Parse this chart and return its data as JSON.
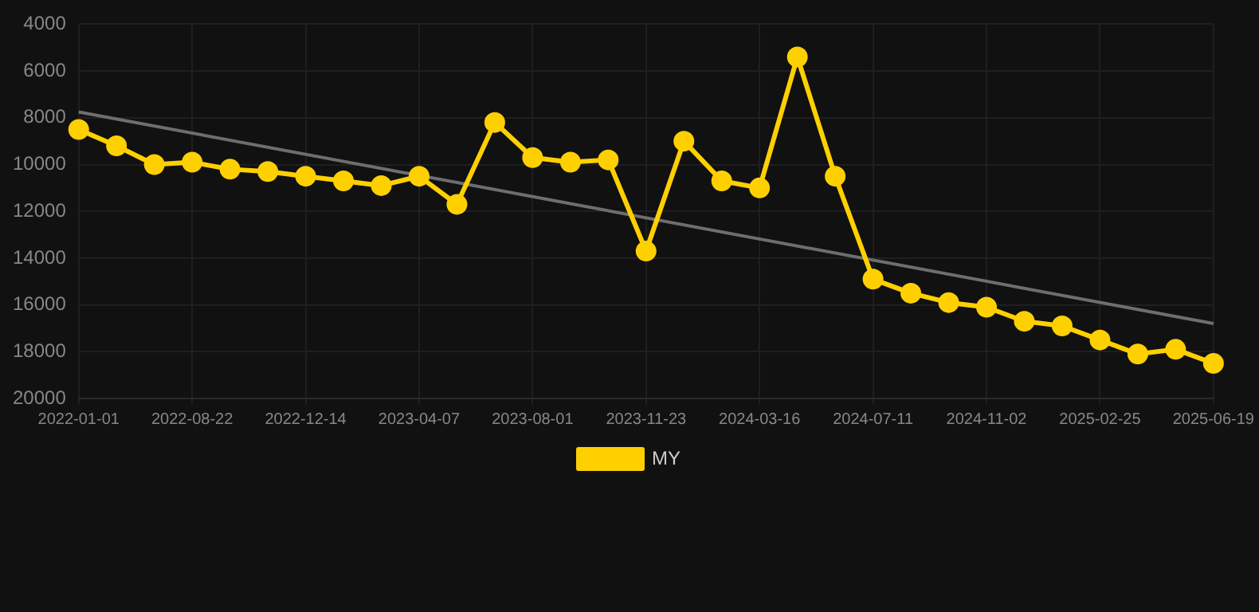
{
  "chart_data": {
    "type": "line",
    "categories": [
      "2022-01-01",
      null,
      null,
      "2022-08-22",
      null,
      null,
      "2022-12-14",
      null,
      null,
      "2023-04-07",
      null,
      null,
      "2023-08-01",
      null,
      null,
      "2023-11-23",
      null,
      null,
      "2024-03-16",
      null,
      null,
      "2024-07-11",
      null,
      null,
      "2024-11-02",
      null,
      null,
      "2025-02-25",
      null,
      null,
      "2025-06-19"
    ],
    "series": [
      {
        "name": "MY",
        "color": "#ffd000",
        "values": [
          8500,
          9200,
          10000,
          9900,
          10200,
          10300,
          10500,
          10700,
          10900,
          10500,
          11700,
          8200,
          9700,
          9900,
          9800,
          13700,
          9000,
          10700,
          11000,
          5400,
          10500,
          14900,
          15500,
          15900,
          16100,
          16700,
          16900,
          17500,
          18100,
          17900,
          18500
        ],
        "marker": "circle"
      },
      {
        "type": "line",
        "color": "#6e6e6e",
        "values": [
          7750,
          null,
          null,
          null,
          null,
          null,
          null,
          null,
          null,
          null,
          null,
          null,
          null,
          null,
          null,
          null,
          null,
          null,
          null,
          null,
          null,
          null,
          null,
          null,
          null,
          null,
          null,
          null,
          null,
          null,
          16800
        ],
        "marker": "none"
      }
    ],
    "ylim": [
      20000,
      4000
    ],
    "yticks": [
      4000,
      6000,
      8000,
      10000,
      12000,
      14000,
      16000,
      18000,
      20000
    ],
    "grid": true,
    "legend": "bottom",
    "line_style": "solid"
  }
}
